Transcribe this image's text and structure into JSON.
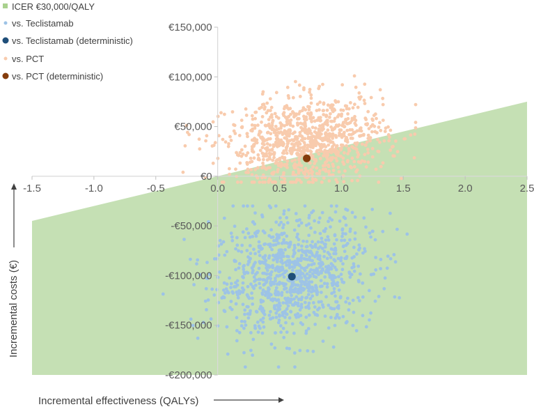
{
  "chart_data": {
    "type": "scatter",
    "xlabel": "Incremental effectiveness (QALYs)",
    "ylabel": "Incremental costs (€)",
    "xlim": [
      -1.5,
      2.5
    ],
    "ylim": [
      -200000,
      150000
    ],
    "x_ticks": [
      -1.5,
      -1.0,
      -0.5,
      0.0,
      0.5,
      1.0,
      1.5,
      2.0,
      2.5
    ],
    "x_tick_labels": [
      "-1.5",
      "-1.0",
      "-0.5",
      "0.0",
      "0.5",
      "1.0",
      "1.5",
      "2.0",
      "2.5"
    ],
    "y_ticks": [
      150000,
      100000,
      50000,
      0,
      -50000,
      -100000,
      -150000,
      -200000
    ],
    "y_tick_labels": [
      "€150,000",
      "€100,000",
      "€50,000",
      "€0",
      "-€50,000",
      "-€100,000",
      "-€150,000",
      "-€200,000"
    ],
    "threshold": {
      "name": "ICER €30,000/QALY",
      "slope": 30000,
      "color": "#c5e0b4",
      "legend_color": "#a9d18e"
    },
    "clouds": [
      {
        "name": "vs. Teclistamab",
        "color": "#9dc3e6",
        "n_points": 1000,
        "mean_x": 0.6,
        "sd_x": 0.32,
        "mean_y": -100000,
        "sd_y": 30000,
        "correlation": 0.15,
        "range_x": [
          -0.7,
          1.6
        ],
        "range_y": [
          -192000,
          -30000
        ]
      },
      {
        "name": "vs. PCT",
        "color": "#f8cbad",
        "n_points": 1000,
        "mean_x": 0.72,
        "sd_x": 0.32,
        "mean_y": 35000,
        "sd_y": 22000,
        "correlation": 0.15,
        "range_x": [
          -0.3,
          1.6
        ],
        "range_y": [
          -6000,
          101000
        ]
      }
    ],
    "deterministic": [
      {
        "name": "vs. Teclistamab (deterministic)",
        "x": 0.6,
        "y": -101000,
        "color": "#1f4e79"
      },
      {
        "name": "vs. PCT (deterministic)",
        "x": 0.72,
        "y": 18000,
        "color": "#843c0c"
      }
    ],
    "legend": [
      {
        "label": "ICER €30,000/QALY",
        "marker": "square",
        "color": "#a9d18e"
      },
      {
        "label": "vs. Teclistamab",
        "marker": "dot-small",
        "color": "#9dc3e6"
      },
      {
        "label": "vs. Teclistamab (deterministic)",
        "marker": "dot-large",
        "color": "#1f4e79"
      },
      {
        "label": "vs. PCT",
        "marker": "dot-small",
        "color": "#f8cbad"
      },
      {
        "label": "vs. PCT (deterministic)",
        "marker": "dot-large",
        "color": "#843c0c"
      }
    ],
    "legend_position": "top-left",
    "grid": false
  }
}
